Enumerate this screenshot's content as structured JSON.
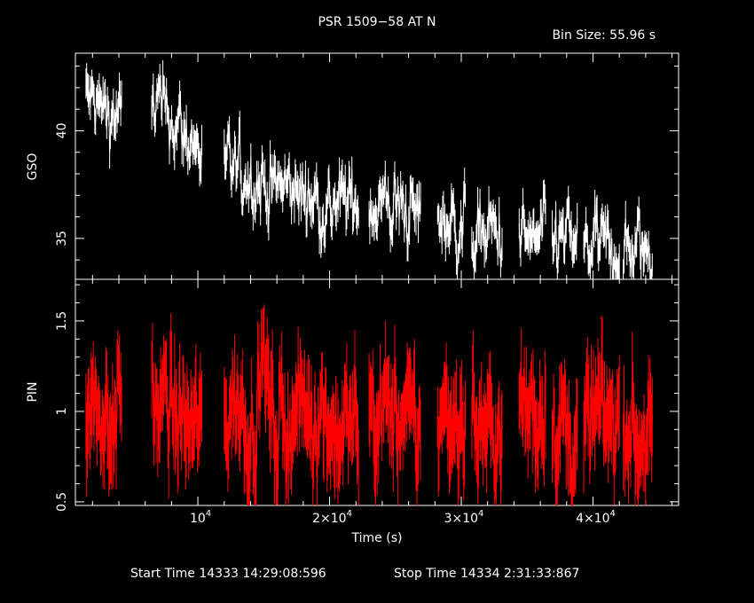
{
  "title": "PSR 1509−58 AT N",
  "bin_size": "Bin Size: 55.96 s",
  "xlabel": "Time (s)",
  "footer": {
    "start": "Start Time 14333 14:29:08:596",
    "stop": "Stop Time 14334  2:31:33:867"
  },
  "colors": {
    "background": "#000000",
    "gso": "#ffffff",
    "pin": "#ff0000",
    "axes": "#ffffff"
  },
  "chart_data": {
    "type": "line",
    "x_range": [
      700,
      46500
    ],
    "x_ticks": [
      {
        "value": 10000,
        "mant": "",
        "exp": "4"
      },
      {
        "value": 20000,
        "mant": "2×",
        "exp": "4"
      },
      {
        "value": 30000,
        "mant": "3×",
        "exp": "4"
      },
      {
        "value": 40000,
        "mant": "4×",
        "exp": "4"
      }
    ],
    "segments": [
      [
        1500,
        4200
      ],
      [
        6500,
        10300
      ],
      [
        12000,
        15600
      ],
      [
        15600,
        19900
      ],
      [
        19900,
        22200
      ],
      [
        23000,
        26900
      ],
      [
        28200,
        30300
      ],
      [
        30800,
        33100
      ],
      [
        34400,
        36400
      ],
      [
        36900,
        38800
      ],
      [
        39300,
        42000
      ],
      [
        42300,
        44500
      ]
    ],
    "panels": [
      {
        "name": "GSO",
        "ylabel": "GSO",
        "ylim": [
          33.1,
          43.6
        ],
        "y_ticks": [
          35,
          40
        ],
        "color": "#ffffff",
        "trend": [
          [
            1500,
            41.5
          ],
          [
            4000,
            40.5
          ],
          [
            6500,
            41.5
          ],
          [
            10000,
            39.2
          ],
          [
            12000,
            38.2
          ],
          [
            20000,
            36.6
          ],
          [
            24000,
            36.6
          ],
          [
            30000,
            35.6
          ],
          [
            34000,
            34.9
          ],
          [
            38000,
            34.9
          ],
          [
            42000,
            34.4
          ],
          [
            44500,
            34.5
          ]
        ],
        "noise": 0.8,
        "err": 0.7
      },
      {
        "name": "PIN",
        "ylabel": "PIN",
        "ylim": [
          0.48,
          1.73
        ],
        "y_ticks": [
          0.5,
          1,
          1.5
        ],
        "color": "#ff0000",
        "trend": [
          [
            1500,
            0.97
          ],
          [
            44500,
            0.92
          ]
        ],
        "noise": 0.14,
        "err": 0.22,
        "flares": [
          [
            4200,
            0.18
          ],
          [
            15000,
            0.32
          ],
          [
            36500,
            0.15
          ]
        ]
      }
    ]
  }
}
